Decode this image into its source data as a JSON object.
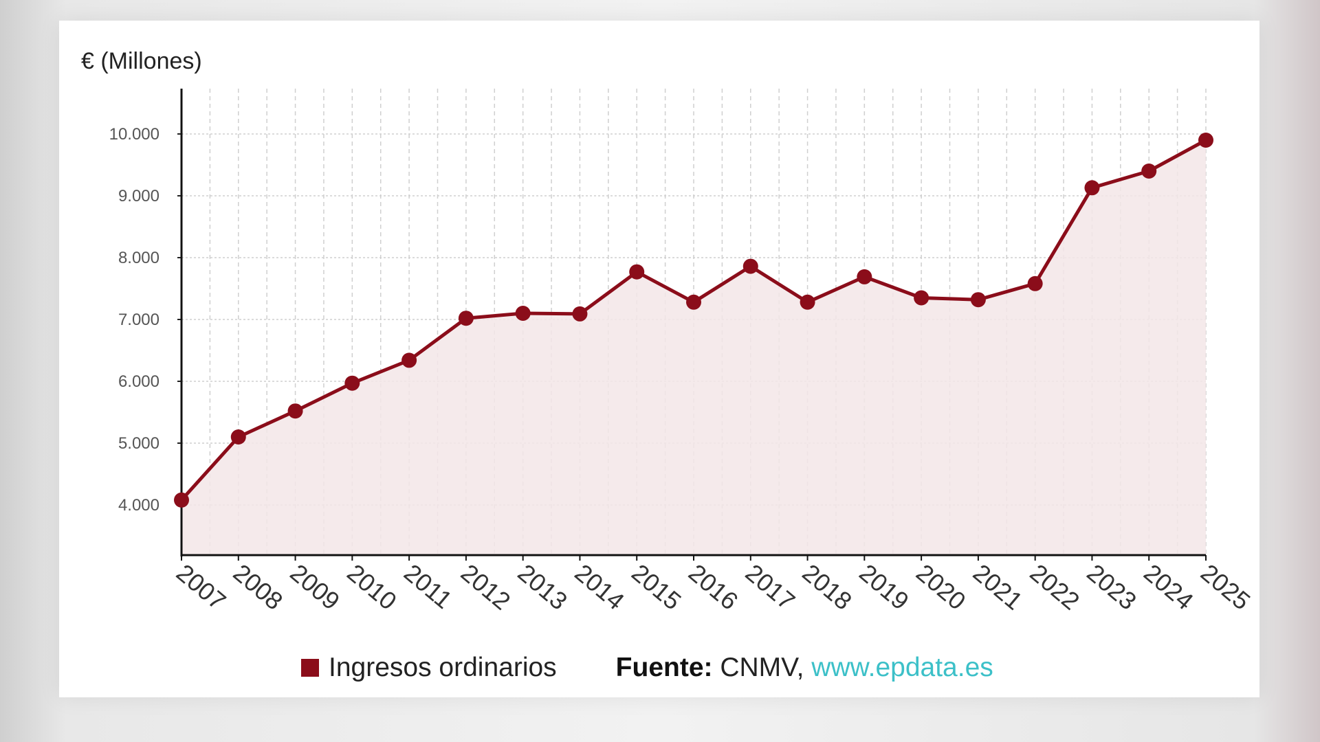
{
  "chart_data": {
    "type": "line",
    "ylabel": "€ (Millones)",
    "x": [
      "2007",
      "2008",
      "2009",
      "2010",
      "2011",
      "2012",
      "2013",
      "2014",
      "2015",
      "2016",
      "2017",
      "2018",
      "2019",
      "2020",
      "2021",
      "2022",
      "2023",
      "2024",
      "2025"
    ],
    "series": [
      {
        "name": "Ingresos ordinarios",
        "values": [
          4080,
          5100,
          5520,
          5970,
          6340,
          7020,
          7100,
          7090,
          7770,
          7280,
          7860,
          7280,
          7690,
          7350,
          7320,
          7580,
          9130,
          9400,
          9900
        ]
      }
    ],
    "yticks": [
      4000,
      5000,
      6000,
      7000,
      8000,
      9000,
      10000
    ],
    "ytick_labels": [
      "4.000",
      "5.000",
      "6.000",
      "7.000",
      "8.000",
      "9.000",
      "10.000"
    ],
    "ylim": [
      3200,
      10700
    ],
    "grid": true,
    "legend": "bottom",
    "color": "#8b0d1a",
    "fill_color": "#f3e6e8"
  },
  "source": {
    "label": "Fuente:",
    "name": "CNMV,",
    "link": "www.epdata.es"
  }
}
